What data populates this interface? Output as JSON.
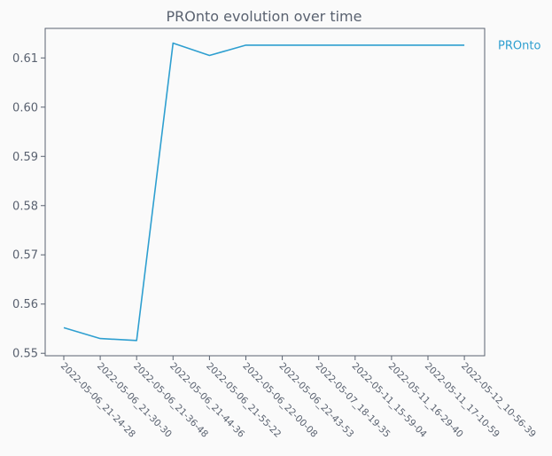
{
  "chart_data": {
    "type": "line",
    "title": "PROnto evolution over time",
    "xlabel": "",
    "ylabel": "",
    "categories": [
      "2022-05-06_21-24-28",
      "2022-05-06_21-30-30",
      "2022-05-06_21-36-48",
      "2022-05-06_21-44-36",
      "2022-05-06_21-55-22",
      "2022-05-06_22-00-08",
      "2022-05-06_22-43-53",
      "2022-05-07_18-19-35",
      "2022-05-11_15-59-04",
      "2022-05-11_16-29-40",
      "2022-05-11_17-10-59",
      "2022-05-12_10-56-39"
    ],
    "series": [
      {
        "name": "PROnto",
        "color": "#2e9fd0",
        "values": [
          0.5552,
          0.553,
          0.5526,
          0.613,
          0.6105,
          0.6126,
          0.6126,
          0.6126,
          0.6126,
          0.6126,
          0.6126,
          0.6126
        ]
      }
    ],
    "ylim": [
      0.5495,
      0.616
    ],
    "yticks": [
      0.55,
      0.56,
      0.57,
      0.58,
      0.59,
      0.6,
      0.61
    ],
    "ytick_labels": [
      "0.55",
      "0.56",
      "0.57",
      "0.58",
      "0.59",
      "0.60",
      "0.61"
    ],
    "grid": false,
    "legend": "right, at line end"
  }
}
